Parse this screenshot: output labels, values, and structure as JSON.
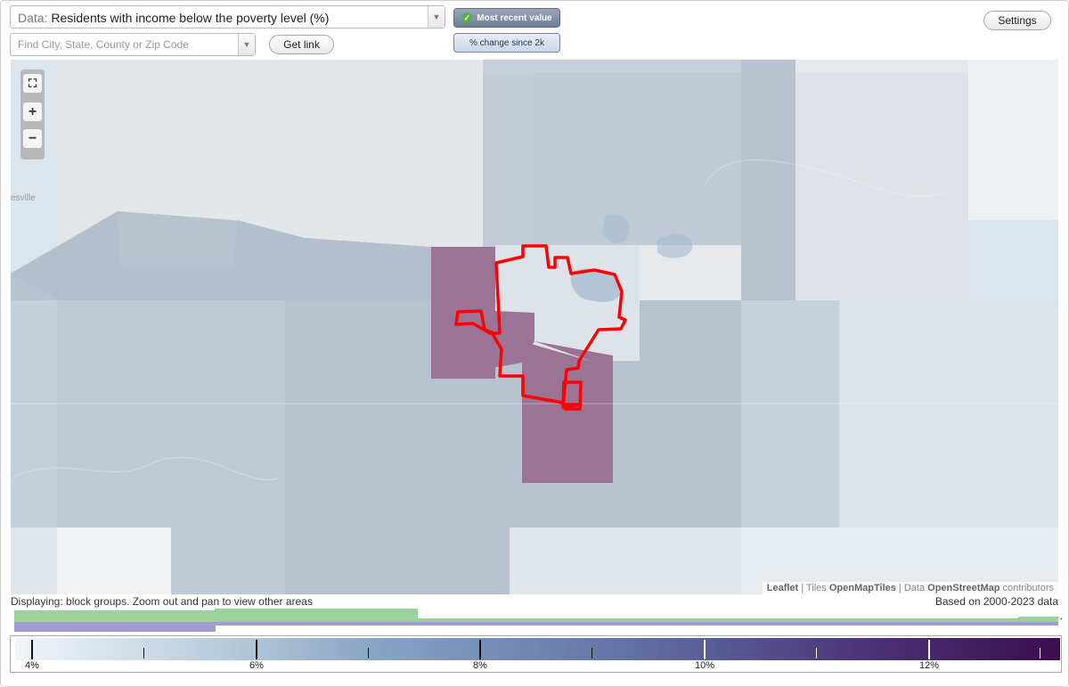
{
  "data_select": {
    "prefix": "Data:",
    "value": "Residents with income below the poverty level (%)"
  },
  "search": {
    "placeholder": "Find City, State, County or Zip Code"
  },
  "buttons": {
    "get_link": "Get link",
    "settings": "Settings"
  },
  "mode_toggle": {
    "active": "Most recent value",
    "inactive": "% change since 2k"
  },
  "map": {
    "partial_place_label": "esville",
    "attribution": {
      "leaflet": "Leaflet",
      "tiles_prefix": "Tiles",
      "tiles": "OpenMapTiles",
      "data_prefix": "Data",
      "data": "OpenStreetMap",
      "suffix": "contributors"
    },
    "selected_outline_color": "#ff0000",
    "high_value_fill_color": "#9a7395"
  },
  "status": {
    "displaying": "Displaying: block groups. Zoom out and pan to view other areas",
    "based_on": "Based on 2000-2023 data"
  },
  "histogram": {
    "unknown_marker": "?"
  },
  "legend": {
    "labels": [
      "4%",
      "6%",
      "8%",
      "10%",
      "12%"
    ],
    "colors": [
      "#f0f5f9",
      "#b7cbdb",
      "#87a3c3",
      "#6b81ae",
      "#5a5e97",
      "#4a2f72",
      "#3c0e4f"
    ]
  }
}
